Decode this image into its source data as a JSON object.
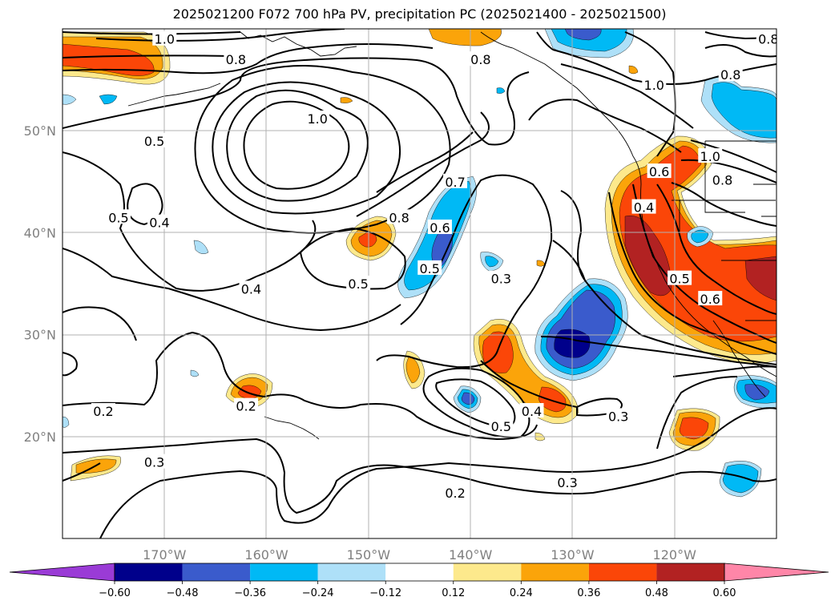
{
  "title": "2025021200 F072 700 hPa PV, precipitation PC (2025021400 - 2025021500)",
  "chart_data": {
    "type": "contour map",
    "title": "2025021200 F072 700 hPa PV, precipitation PC (2025021400 - 2025021500)",
    "xlim": [
      -180,
      -110
    ],
    "ylim": [
      10,
      60
    ],
    "grid": true,
    "lon_ticks": [
      {
        "value": -170,
        "label": "170°W"
      },
      {
        "value": -160,
        "label": "160°W"
      },
      {
        "value": -150,
        "label": "150°W"
      },
      {
        "value": -140,
        "label": "140°W"
      },
      {
        "value": -130,
        "label": "130°W"
      },
      {
        "value": -120,
        "label": "120°W"
      }
    ],
    "lat_ticks": [
      {
        "value": 50,
        "label": "50°N"
      },
      {
        "value": 40,
        "label": "40°N"
      },
      {
        "value": 30,
        "label": "30°N"
      },
      {
        "value": 20,
        "label": "20°N"
      }
    ],
    "colorbar": {
      "levels": [
        -0.72,
        -0.6,
        -0.48,
        -0.36,
        -0.24,
        -0.12,
        0.12,
        0.24,
        0.36,
        0.48,
        0.6,
        0.72
      ],
      "tick_labels": [
        "−0.60",
        "−0.48",
        "−0.36",
        "−0.24",
        "−0.12",
        "0.12",
        "0.24",
        "0.36",
        "0.48",
        "0.60"
      ],
      "colors": [
        "#9a3bd6",
        "#00008b",
        "#3a5bcc",
        "#00b9f5",
        "#aee0f8",
        "#ffffff",
        "#fde98c",
        "#fba40a",
        "#fb4608",
        "#b22222",
        "#ff86a8"
      ],
      "extend": "both"
    },
    "pv_contour_labels": [
      {
        "text": "1.0",
        "lon": -170.0,
        "lat": 59.0
      },
      {
        "text": "0.8",
        "lon": -163.0,
        "lat": 57.0
      },
      {
        "text": "0.8",
        "lon": -139.0,
        "lat": 57.0
      },
      {
        "text": "0.8",
        "lon": -114.5,
        "lat": 55.5
      },
      {
        "text": "1.0",
        "lon": -122.0,
        "lat": 54.5
      },
      {
        "text": "1.0",
        "lon": -116.5,
        "lat": 47.5
      },
      {
        "text": "0.8",
        "lon": -115.3,
        "lat": 45.2
      },
      {
        "text": "0.8",
        "lon": -110.8,
        "lat": 59.0
      },
      {
        "text": "1.0",
        "lon": -155.0,
        "lat": 51.2
      },
      {
        "text": "0.5",
        "lon": -171.0,
        "lat": 49.0
      },
      {
        "text": "0.7",
        "lon": -141.5,
        "lat": 45.0
      },
      {
        "text": "0.8",
        "lon": -147.0,
        "lat": 41.5
      },
      {
        "text": "0.6",
        "lon": -143.0,
        "lat": 40.5
      },
      {
        "text": "0.5",
        "lon": -174.5,
        "lat": 41.5
      },
      {
        "text": "0.4",
        "lon": -170.5,
        "lat": 41.0
      },
      {
        "text": "0.4",
        "lon": -123.0,
        "lat": 42.5
      },
      {
        "text": "0.6",
        "lon": -121.5,
        "lat": 46.0
      },
      {
        "text": "0.5",
        "lon": -119.5,
        "lat": 35.5
      },
      {
        "text": "0.6",
        "lon": -116.5,
        "lat": 33.5
      },
      {
        "text": "0.5",
        "lon": -144.0,
        "lat": 36.5
      },
      {
        "text": "0.3",
        "lon": -137.0,
        "lat": 35.5
      },
      {
        "text": "0.5",
        "lon": -151.0,
        "lat": 35.0
      },
      {
        "text": "0.4",
        "lon": -161.5,
        "lat": 34.5
      },
      {
        "text": "0.2",
        "lon": -176.0,
        "lat": 22.5
      },
      {
        "text": "0.2",
        "lon": -162.0,
        "lat": 23.0
      },
      {
        "text": "0.4",
        "lon": -134.0,
        "lat": 22.5
      },
      {
        "text": "0.5",
        "lon": -137.0,
        "lat": 21.0
      },
      {
        "text": "0.3",
        "lon": -125.5,
        "lat": 22.0
      },
      {
        "text": "0.3",
        "lon": -171.0,
        "lat": 17.5
      },
      {
        "text": "0.3",
        "lon": -130.5,
        "lat": 15.5
      },
      {
        "text": "0.2",
        "lon": -141.5,
        "lat": 14.5
      }
    ]
  }
}
